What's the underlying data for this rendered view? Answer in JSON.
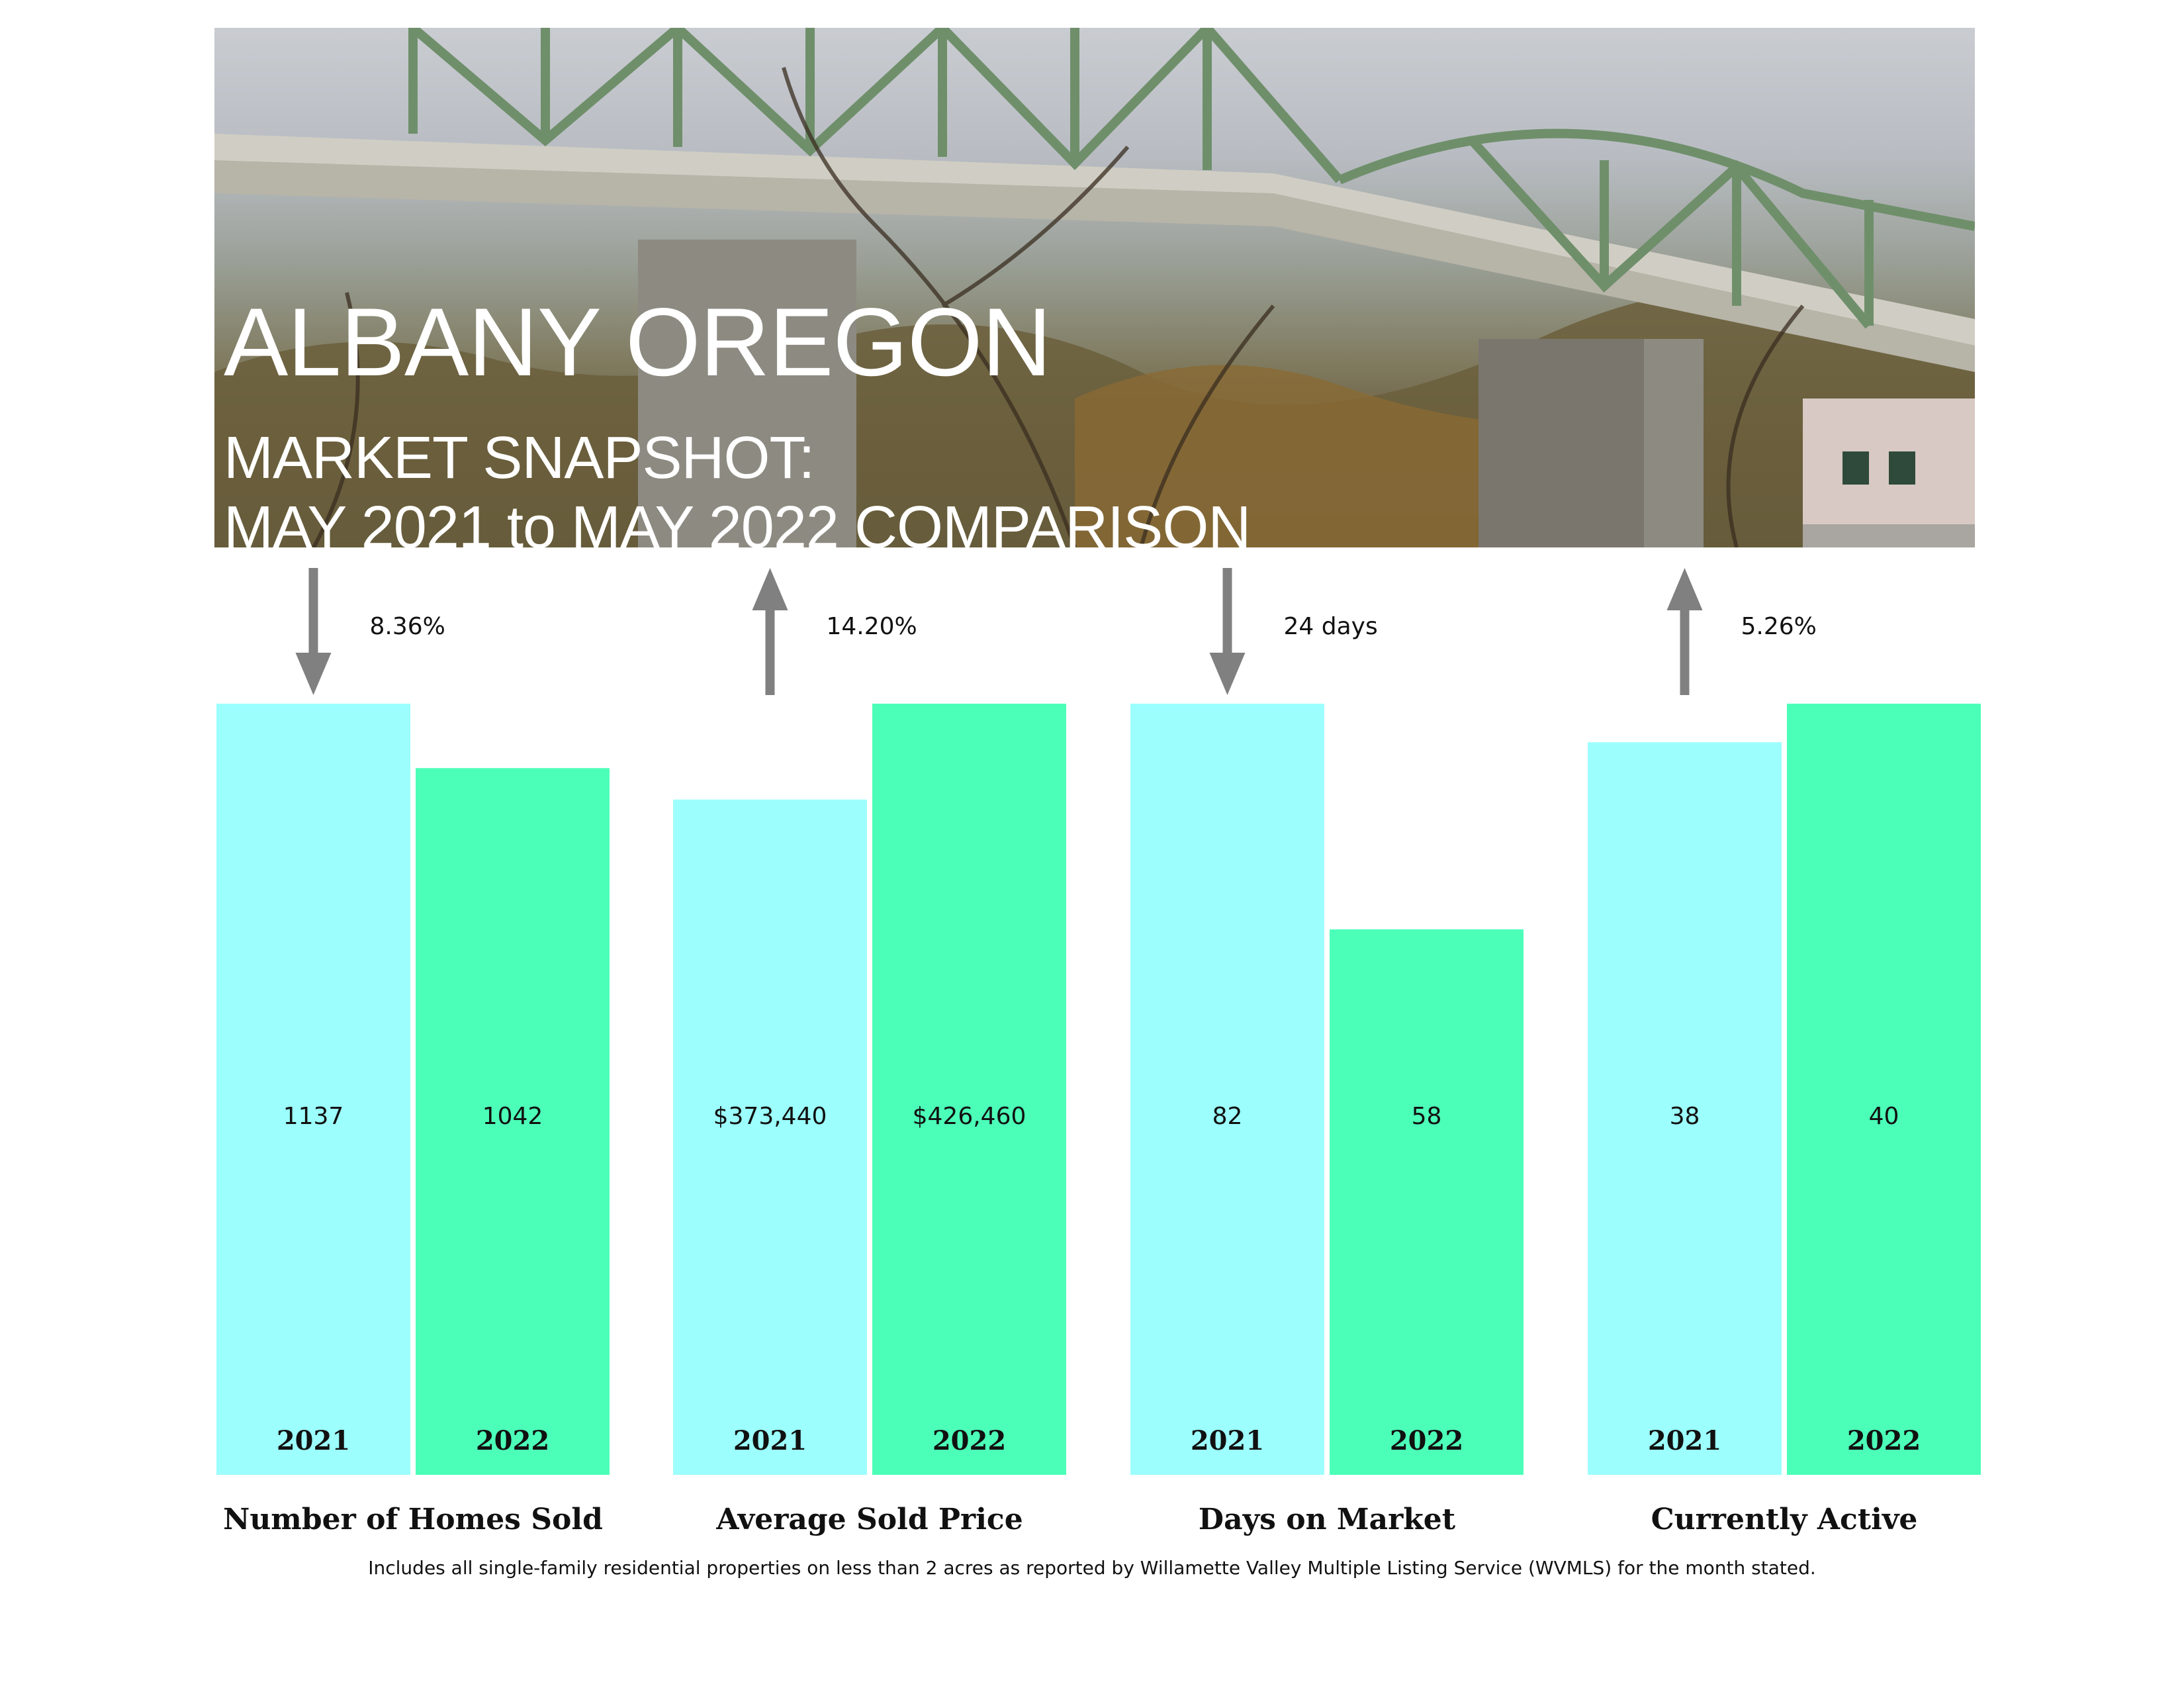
{
  "header": {
    "title": "ALBANY OREGON",
    "subtitle_line1": "MARKET SNAPSHOT:",
    "subtitle_line2": "MAY 2021 to MAY 2022 COMPARISON"
  },
  "chart_data": {
    "type": "bar",
    "series_years": [
      "2021",
      "2022"
    ],
    "colors": {
      "2021": "#9cfffd",
      "2022": "#4cffb8",
      "arrow": "#808080"
    },
    "groups": [
      {
        "category": "Number of Homes Sold",
        "values": [
          1137,
          1042
        ],
        "labels": [
          "1137",
          "1042"
        ],
        "change": "8.36%",
        "direction": "down"
      },
      {
        "category": "Average Sold Price",
        "values": [
          373440,
          426460
        ],
        "labels": [
          "$373,440",
          "$426,460"
        ],
        "change": "14.20%",
        "direction": "up"
      },
      {
        "category": "Days on Market",
        "values": [
          82,
          58
        ],
        "labels": [
          "82",
          "58"
        ],
        "change": "24 days",
        "direction": "down"
      },
      {
        "category": "Currently Active",
        "values": [
          38,
          40
        ],
        "labels": [
          "38",
          "40"
        ],
        "change": "5.26%",
        "direction": "up"
      }
    ]
  },
  "footnote": "Includes all single-family residential properties on less than 2 acres as reported by Willamette Valley Multiple Listing Service (WVMLS) for the month stated."
}
